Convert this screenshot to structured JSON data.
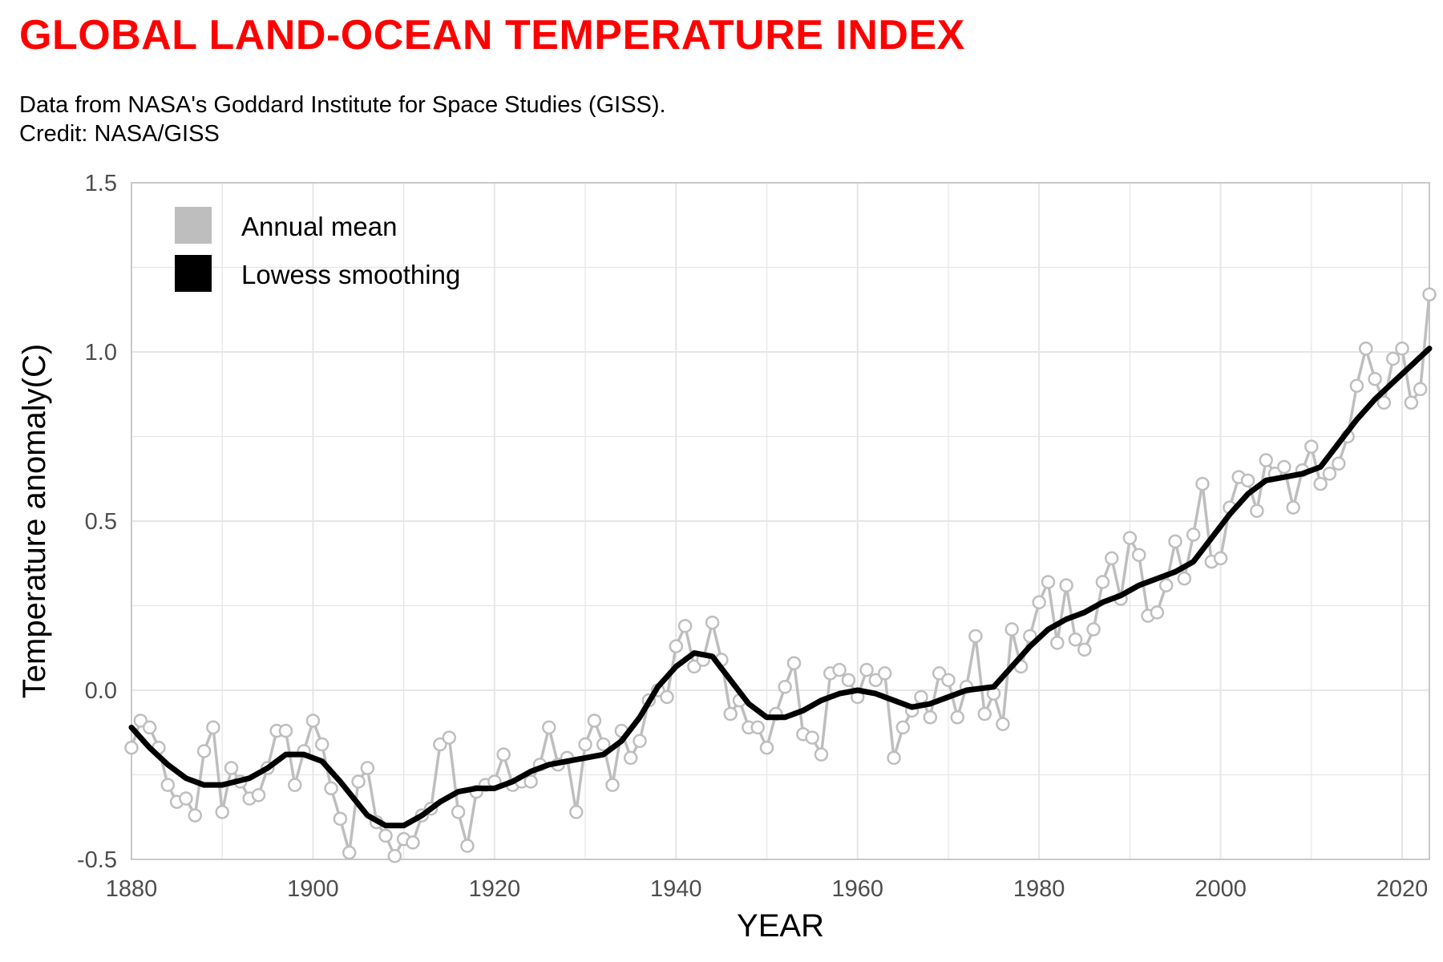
{
  "title": "GLOBAL LAND-OCEAN TEMPERATURE INDEX",
  "subtitle_lines": [
    "Data from NASA's Goddard Institute for Space Studies (GISS).",
    "Credit: NASA/GISS"
  ],
  "colors": {
    "title": "#ff0000",
    "annual": "#bebebe",
    "smooth": "#000000",
    "grid": "#e6e6e6",
    "tick_label": "#4d4d4d"
  },
  "chart_data": {
    "type": "line",
    "title": "GLOBAL LAND-OCEAN TEMPERATURE INDEX",
    "xlabel": "YEAR",
    "ylabel": "Temperature anomaly(C)",
    "xlim": [
      1880,
      2023
    ],
    "ylim": [
      -0.5,
      1.5
    ],
    "x_ticks": [
      1880,
      1900,
      1920,
      1940,
      1960,
      1980,
      2000,
      2020
    ],
    "y_ticks": [
      -0.5,
      0.0,
      0.5,
      1.0,
      1.5
    ],
    "y_tick_labels": [
      "-0.5",
      "0.0",
      "0.5",
      "1.0",
      "1.5"
    ],
    "grid": true,
    "legend": {
      "position": "top-left",
      "entries": [
        "Annual mean",
        "Lowess smoothing"
      ]
    },
    "series": [
      {
        "name": "Annual mean",
        "x_start": 1880,
        "values": [
          -0.17,
          -0.09,
          -0.11,
          -0.17,
          -0.28,
          -0.33,
          -0.32,
          -0.37,
          -0.18,
          -0.11,
          -0.36,
          -0.23,
          -0.27,
          -0.32,
          -0.31,
          -0.23,
          -0.12,
          -0.12,
          -0.28,
          -0.18,
          -0.09,
          -0.16,
          -0.29,
          -0.38,
          -0.48,
          -0.27,
          -0.23,
          -0.39,
          -0.43,
          -0.49,
          -0.44,
          -0.45,
          -0.37,
          -0.35,
          -0.16,
          -0.14,
          -0.36,
          -0.46,
          -0.3,
          -0.28,
          -0.27,
          -0.19,
          -0.28,
          -0.27,
          -0.27,
          -0.22,
          -0.11,
          -0.22,
          -0.2,
          -0.36,
          -0.16,
          -0.09,
          -0.16,
          -0.28,
          -0.12,
          -0.2,
          -0.15,
          -0.03,
          0.0,
          -0.02,
          0.13,
          0.19,
          0.07,
          0.09,
          0.2,
          0.09,
          -0.07,
          -0.03,
          -0.11,
          -0.11,
          -0.17,
          -0.07,
          0.01,
          0.08,
          -0.13,
          -0.14,
          -0.19,
          0.05,
          0.06,
          0.03,
          -0.02,
          0.06,
          0.03,
          0.05,
          -0.2,
          -0.11,
          -0.06,
          -0.02,
          -0.08,
          0.05,
          0.03,
          -0.08,
          0.01,
          0.16,
          -0.07,
          -0.01,
          -0.1,
          0.18,
          0.07,
          0.16,
          0.26,
          0.32,
          0.14,
          0.31,
          0.15,
          0.12,
          0.18,
          0.32,
          0.39,
          0.27,
          0.45,
          0.4,
          0.22,
          0.23,
          0.31,
          0.44,
          0.33,
          0.46,
          0.61,
          0.38,
          0.39,
          0.54,
          0.63,
          0.62,
          0.53,
          0.68,
          0.64,
          0.66,
          0.54,
          0.65,
          0.72,
          0.61,
          0.64,
          0.67,
          0.75,
          0.9,
          1.01,
          0.92,
          0.85,
          0.98,
          1.01,
          0.85,
          0.89,
          1.17
        ]
      },
      {
        "name": "Lowess smoothing",
        "x": [
          1880,
          1882,
          1884,
          1886,
          1888,
          1890,
          1893,
          1895,
          1897,
          1899,
          1901,
          1903,
          1906,
          1908,
          1910,
          1912,
          1914,
          1916,
          1918,
          1920,
          1922,
          1924,
          1926,
          1928,
          1930,
          1932,
          1934,
          1936,
          1938,
          1940,
          1942,
          1944,
          1946,
          1948,
          1950,
          1952,
          1954,
          1956,
          1958,
          1960,
          1962,
          1964,
          1966,
          1968,
          1970,
          1972,
          1975,
          1977,
          1979,
          1981,
          1983,
          1985,
          1987,
          1989,
          1991,
          1993,
          1995,
          1997,
          1999,
          2001,
          2003,
          2005,
          2007,
          2009,
          2011,
          2013,
          2015,
          2017,
          2019,
          2021,
          2023
        ],
        "values": [
          -0.11,
          -0.17,
          -0.22,
          -0.26,
          -0.28,
          -0.28,
          -0.26,
          -0.23,
          -0.19,
          -0.19,
          -0.21,
          -0.27,
          -0.37,
          -0.4,
          -0.4,
          -0.37,
          -0.33,
          -0.3,
          -0.29,
          -0.29,
          -0.27,
          -0.24,
          -0.22,
          -0.21,
          -0.2,
          -0.19,
          -0.15,
          -0.08,
          0.01,
          0.07,
          0.11,
          0.1,
          0.03,
          -0.04,
          -0.08,
          -0.08,
          -0.06,
          -0.03,
          -0.01,
          0.0,
          -0.01,
          -0.03,
          -0.05,
          -0.04,
          -0.02,
          0.0,
          0.01,
          0.07,
          0.13,
          0.18,
          0.21,
          0.23,
          0.26,
          0.28,
          0.31,
          0.33,
          0.35,
          0.38,
          0.45,
          0.52,
          0.58,
          0.62,
          0.63,
          0.64,
          0.66,
          0.73,
          0.8,
          0.86,
          0.91,
          0.96,
          1.01
        ]
      }
    ]
  }
}
